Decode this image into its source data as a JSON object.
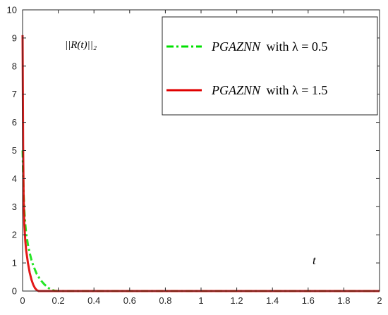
{
  "chart_data": {
    "type": "line",
    "title": "",
    "xlabel": "",
    "ylabel": "",
    "xlim": [
      0,
      2
    ],
    "ylim": [
      0,
      10
    ],
    "x_ticks": [
      "0",
      "0.2",
      "0.4",
      "0.6",
      "0.8",
      "1",
      "1.2",
      "1.4",
      "1.6",
      "1.8",
      "2"
    ],
    "y_ticks": [
      "0",
      "1",
      "2",
      "3",
      "4",
      "5",
      "6",
      "7",
      "8",
      "9",
      "10"
    ],
    "grid": false,
    "legend_position": "top-right",
    "annotations": {
      "norm_label": "||R(t)||₂",
      "t_label": "t"
    },
    "series": [
      {
        "name": "PGAZNN with λ = 0.5",
        "color": "#00e000",
        "style": "dash-dot",
        "x": [
          0,
          0.005,
          0.01,
          0.015,
          0.02,
          0.03,
          0.04,
          0.05,
          0.06,
          0.08,
          0.1,
          0.12,
          0.14,
          0.16,
          0.18,
          0.2,
          0.3,
          0.5,
          1.0,
          1.5,
          2.0
        ],
        "y": [
          5.0,
          3.6,
          2.85,
          2.4,
          2.05,
          1.65,
          1.35,
          1.1,
          0.9,
          0.6,
          0.4,
          0.25,
          0.13,
          0.05,
          0.01,
          0,
          0,
          0,
          0,
          0,
          0
        ]
      },
      {
        "name": "PGAZNN with λ = 1.5",
        "color": "#e00000",
        "style": "solid",
        "x": [
          0,
          0.003,
          0.006,
          0.01,
          0.015,
          0.02,
          0.03,
          0.04,
          0.05,
          0.06,
          0.07,
          0.08,
          0.09,
          0.1,
          0.3,
          0.5,
          1.0,
          1.5,
          2.0
        ],
        "y": [
          9.1,
          5.2,
          3.3,
          2.35,
          1.8,
          1.45,
          1.0,
          0.65,
          0.4,
          0.22,
          0.1,
          0.03,
          0,
          0,
          0,
          0,
          0,
          0,
          0
        ]
      }
    ]
  },
  "legend": {
    "entries": [
      {
        "name": "PGAZNN",
        "suffix": "with λ = 0.5"
      },
      {
        "name": "PGAZNN",
        "suffix": "with λ = 1.5"
      }
    ]
  }
}
